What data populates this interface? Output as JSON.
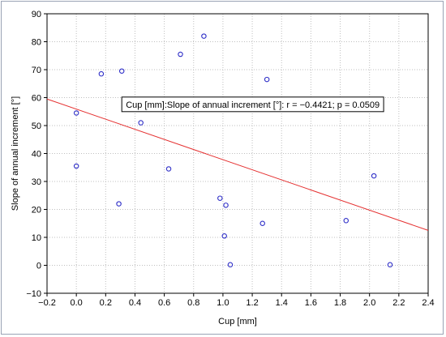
{
  "chart_data": {
    "type": "scatter",
    "title": "",
    "xlabel": "Cup [mm]",
    "ylabel": "Slope of annual increment [°]",
    "xlim": [
      -0.2,
      2.4
    ],
    "ylim": [
      -10,
      90
    ],
    "x_ticks": [
      -0.2,
      0.0,
      0.2,
      0.4,
      0.6,
      0.8,
      1.0,
      1.2,
      1.4,
      1.6,
      1.8,
      2.0,
      2.2,
      2.4
    ],
    "x_tick_labels": [
      "−0.2",
      "0.0",
      "0.2",
      "0.4",
      "0.6",
      "0.8",
      "1.0",
      "1.2",
      "1.4",
      "1.6",
      "1.8",
      "2.0",
      "2.2",
      "2.4"
    ],
    "y_ticks": [
      -10,
      0,
      10,
      20,
      30,
      40,
      50,
      60,
      70,
      80,
      90
    ],
    "y_tick_labels": [
      "−10",
      "0",
      "10",
      "20",
      "30",
      "40",
      "50",
      "60",
      "70",
      "80",
      "90"
    ],
    "grid": true,
    "points": [
      {
        "x": 0.0,
        "y": 54.5
      },
      {
        "x": 0.0,
        "y": 35.5
      },
      {
        "x": 0.17,
        "y": 68.5
      },
      {
        "x": 0.29,
        "y": 22.0
      },
      {
        "x": 0.31,
        "y": 69.5
      },
      {
        "x": 0.44,
        "y": 51.0
      },
      {
        "x": 0.63,
        "y": 34.5
      },
      {
        "x": 0.71,
        "y": 75.5
      },
      {
        "x": 0.87,
        "y": 82.0
      },
      {
        "x": 0.98,
        "y": 24.0
      },
      {
        "x": 1.01,
        "y": 10.5
      },
      {
        "x": 1.02,
        "y": 21.5
      },
      {
        "x": 1.05,
        "y": 0.2
      },
      {
        "x": 1.27,
        "y": 15.0
      },
      {
        "x": 1.3,
        "y": 66.5
      },
      {
        "x": 1.84,
        "y": 16.0
      },
      {
        "x": 2.03,
        "y": 32.0
      },
      {
        "x": 2.14,
        "y": 0.2
      }
    ],
    "regression_line": {
      "x": [
        -0.2,
        2.4
      ],
      "y": [
        59.5,
        12.5
      ]
    },
    "annotation": {
      "text": "Cup [mm]:Slope of annual increment [°]:   r = −0.4421; p = 0.0509",
      "anchor_x": 0.31,
      "anchor_y": 60.2
    },
    "colors": {
      "points": "#3030c8",
      "line": "#e53030",
      "grid": "#bfbfbf",
      "axis": "#000000"
    }
  }
}
